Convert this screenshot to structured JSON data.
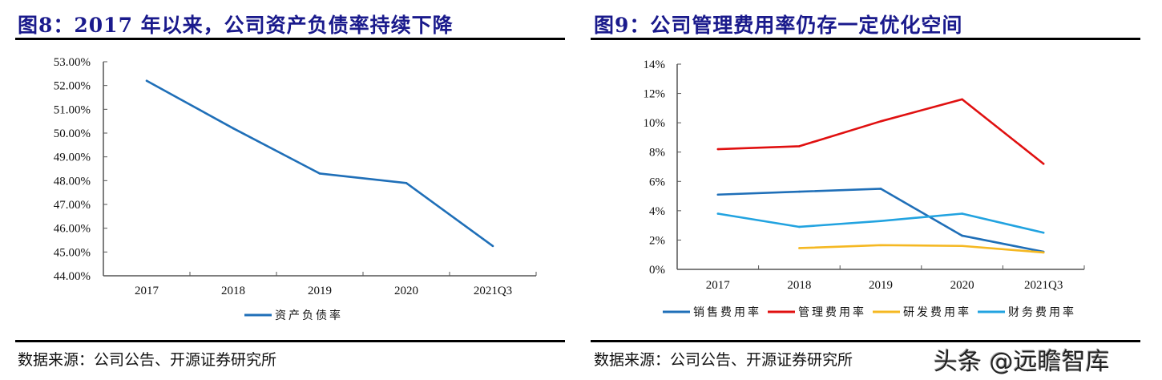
{
  "figures": [
    {
      "title": "图8：2017 年以来，公司资产负债率持续下降",
      "source": "数据来源：公司公告、开源证券研究所"
    },
    {
      "title": "图9：公司管理费用率仍存一定优化空间",
      "source": "数据来源：公司公告、开源证券研究所",
      "watermark": "头条 @远瞻智库"
    }
  ],
  "chart_data": [
    {
      "type": "line",
      "title": "图8：2017 年以来，公司资产负债率持续下降",
      "xlabel": "",
      "ylabel": "",
      "categories": [
        "2017",
        "2018",
        "2019",
        "2020",
        "2021Q3"
      ],
      "series": [
        {
          "name": "资产负债率",
          "color": "#1f6fb8",
          "values": [
            52.2,
            50.2,
            48.3,
            47.9,
            45.25
          ]
        }
      ],
      "ylim": [
        44,
        53
      ],
      "yticks": [
        44,
        45,
        46,
        47,
        48,
        49,
        50,
        51,
        52,
        53
      ],
      "ytick_labels": [
        "44.00%",
        "45.00%",
        "46.00%",
        "47.00%",
        "48.00%",
        "49.00%",
        "50.00%",
        "51.00%",
        "52.00%",
        "53.00%"
      ],
      "grid": false,
      "legend": "bottom-center"
    },
    {
      "type": "line",
      "title": "图9：公司管理费用率仍存一定优化空间",
      "xlabel": "",
      "ylabel": "",
      "categories": [
        "2017",
        "2018",
        "2019",
        "2020",
        "2021Q3"
      ],
      "series": [
        {
          "name": "销售费用率",
          "color": "#1f6fb8",
          "values": [
            5.1,
            5.3,
            5.5,
            2.3,
            1.2
          ]
        },
        {
          "name": "管理费用率",
          "color": "#e01010",
          "values": [
            8.2,
            8.4,
            10.1,
            11.6,
            7.2
          ]
        },
        {
          "name": "研发费用率",
          "color": "#f5b822",
          "values": [
            null,
            1.45,
            1.65,
            1.6,
            1.15
          ]
        },
        {
          "name": "财务费用率",
          "color": "#22a3e0",
          "values": [
            3.8,
            2.9,
            3.3,
            3.8,
            2.5
          ]
        }
      ],
      "ylim": [
        0,
        14
      ],
      "yticks": [
        0,
        2,
        4,
        6,
        8,
        10,
        12,
        14
      ],
      "ytick_labels": [
        "0%",
        "2%",
        "4%",
        "6%",
        "8%",
        "10%",
        "12%",
        "14%"
      ],
      "grid": false,
      "legend": "bottom-center"
    }
  ]
}
